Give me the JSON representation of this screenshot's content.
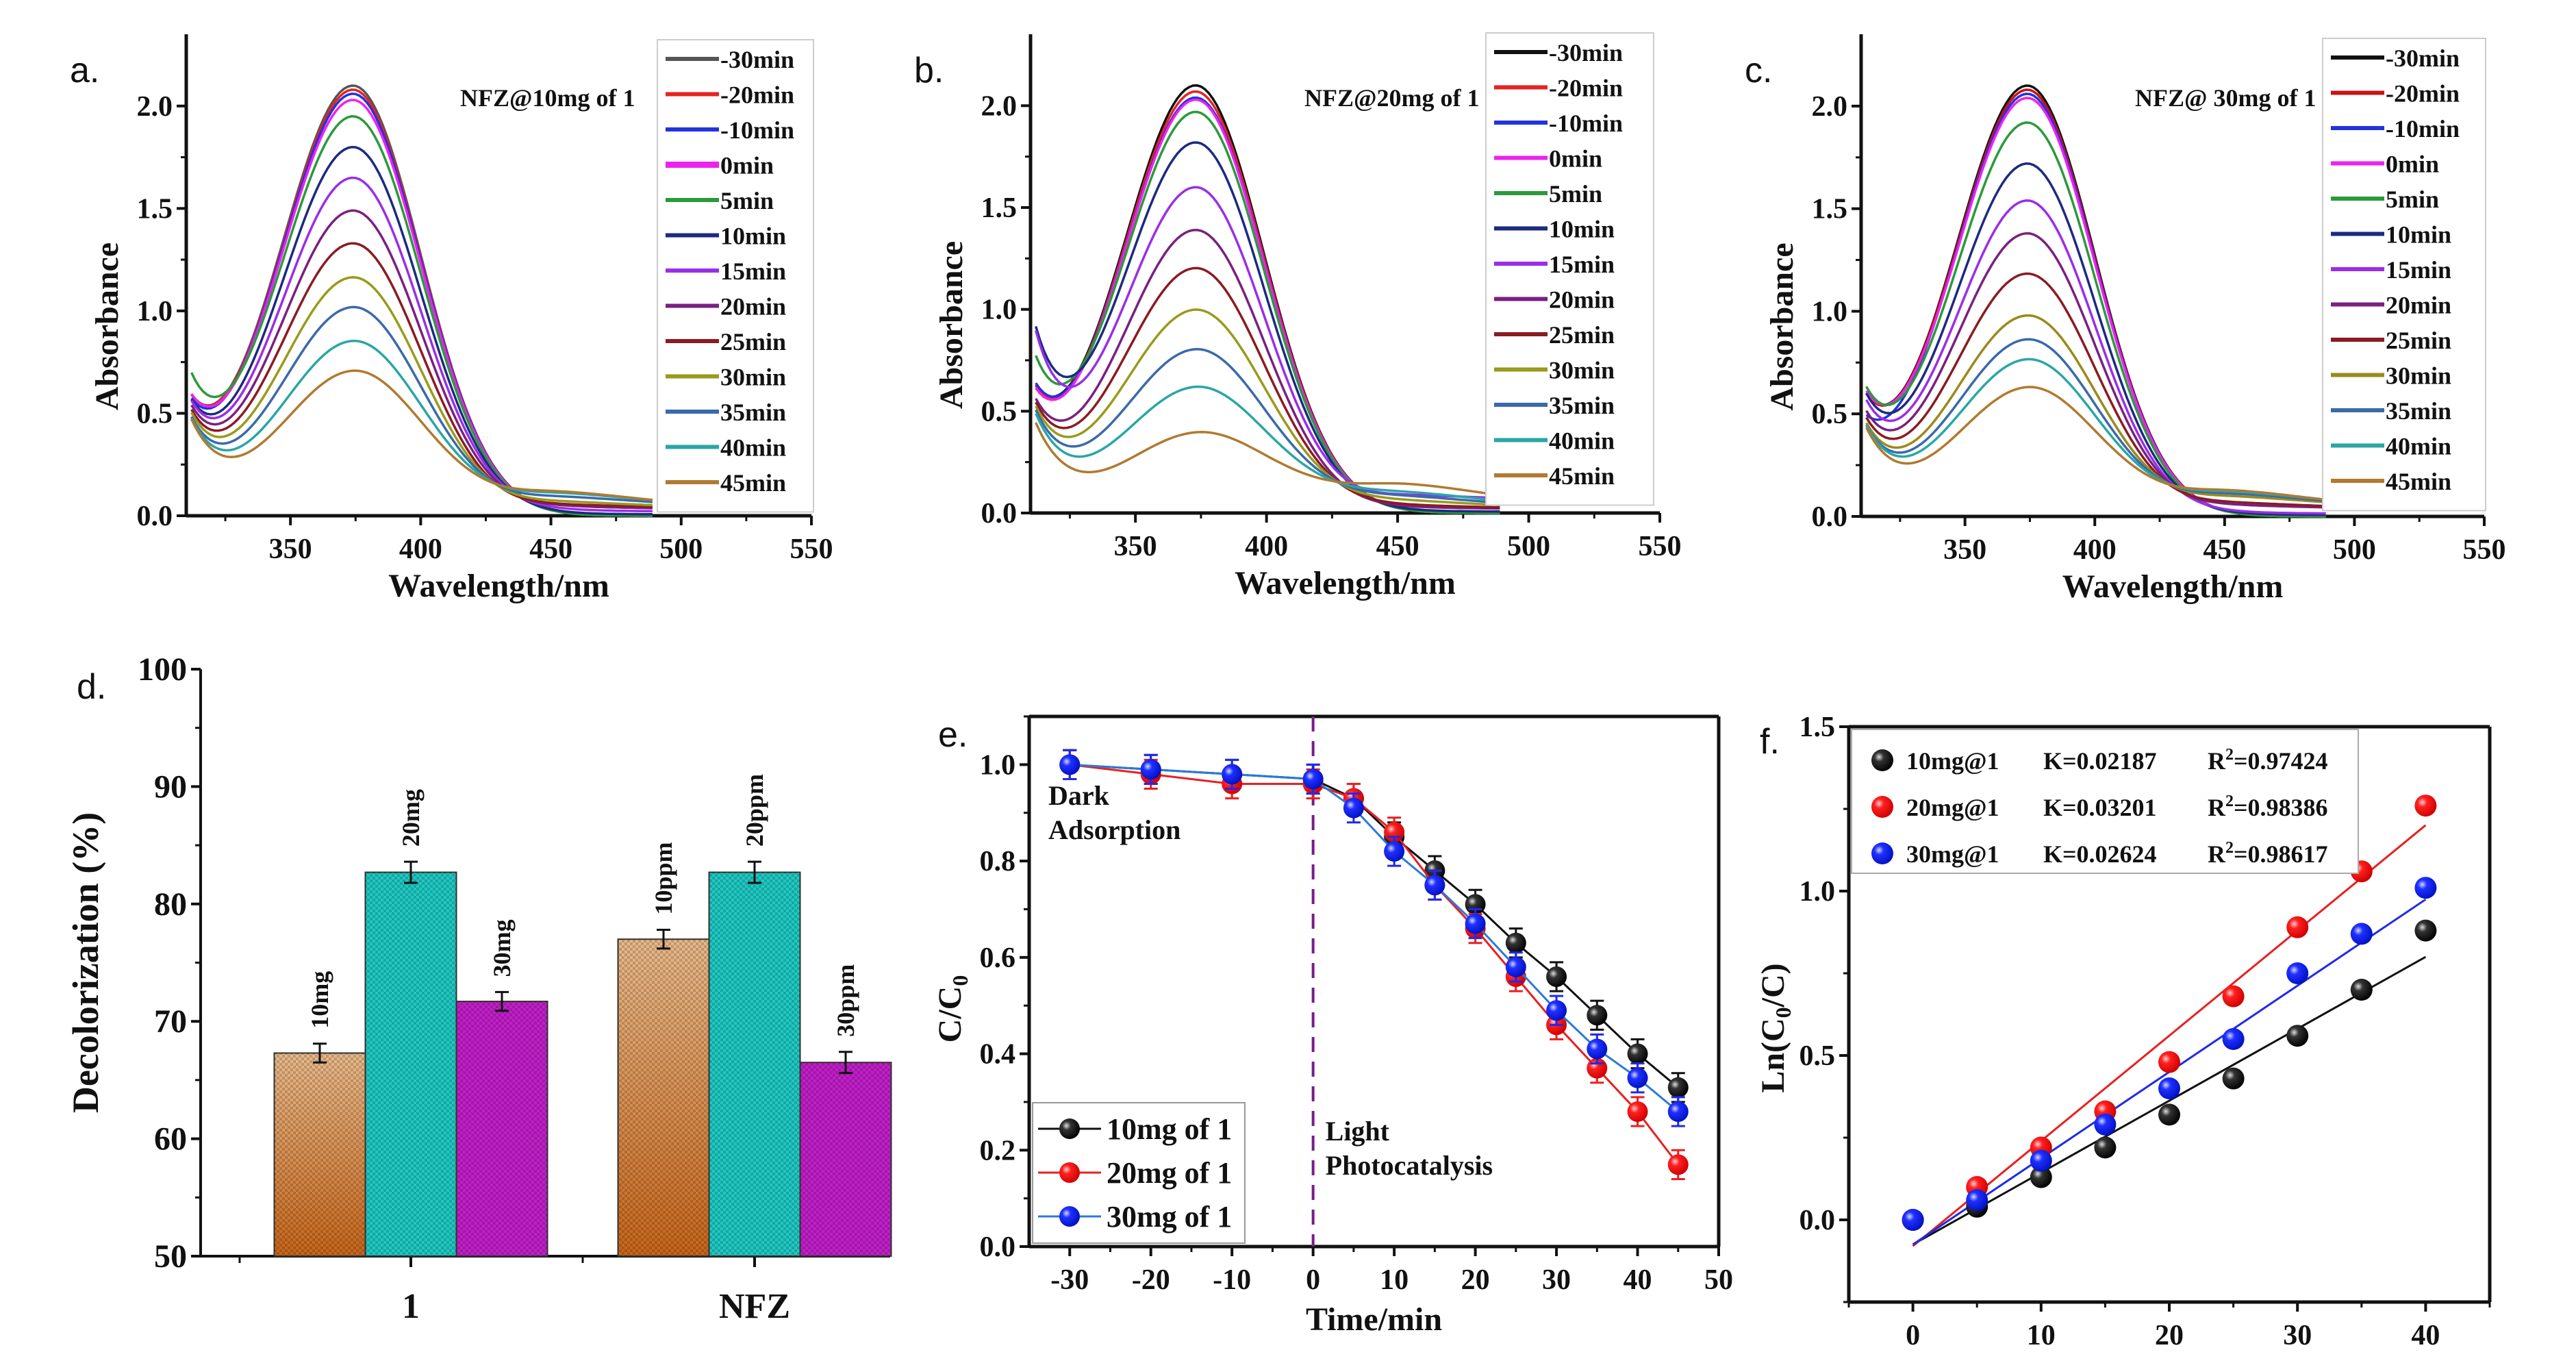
{
  "figure": {
    "panels": [
      "a.",
      "b.",
      "c.",
      "d.",
      "e.",
      "f."
    ]
  },
  "chart_data": [
    {
      "id": "a",
      "type": "line",
      "panel_label": "a.",
      "annotation": "NFZ@10mg of 1",
      "xlabel": "Wavelength/nm",
      "ylabel": "Absorbance",
      "xlim": [
        310,
        550
      ],
      "ylim": [
        0,
        2.25
      ],
      "xticks": [
        350,
        400,
        450,
        500,
        550
      ],
      "yticks": [
        0.0,
        0.5,
        1.0,
        1.5,
        2.0
      ],
      "ytick_labels": [
        "0.0",
        "0.5",
        "1.0",
        "1.5",
        "2.0"
      ],
      "legend_position": "right",
      "peak_nm": 374,
      "series": [
        {
          "name": "-30min",
          "color": "#555555",
          "peak": 2.1,
          "start": 0.52,
          "tail": 0.0
        },
        {
          "name": "-20min",
          "color": "#e8221f",
          "peak": 2.08,
          "start": 0.52,
          "tail": 0.0
        },
        {
          "name": "-10min",
          "color": "#2233dd",
          "peak": 2.06,
          "start": 0.5,
          "tail": 0.0
        },
        {
          "name": "0min",
          "color": "#ee22ee",
          "peak": 2.03,
          "start": 0.53,
          "tail": 0.0
        },
        {
          "name": "5min",
          "color": "#2a9a3a",
          "peak": 1.95,
          "start": 0.67,
          "tail": 0.0
        },
        {
          "name": "10min",
          "color": "#1c2a80",
          "peak": 1.8,
          "start": 0.52,
          "tail": 0.01
        },
        {
          "name": "15min",
          "color": "#9a2ee8",
          "peak": 1.65,
          "start": 0.53,
          "tail": 0.03
        },
        {
          "name": "20min",
          "color": "#7a2080",
          "peak": 1.49,
          "start": 0.52,
          "tail": 0.05
        },
        {
          "name": "25min",
          "color": "#8a1c22",
          "peak": 1.33,
          "start": 0.51,
          "tail": 0.06
        },
        {
          "name": "30min",
          "color": "#9a9a1c",
          "peak": 1.16,
          "start": 0.51,
          "tail": 0.06
        },
        {
          "name": "35min",
          "color": "#3a6aaa",
          "peak": 1.01,
          "start": 0.5,
          "tail": 0.07
        },
        {
          "name": "40min",
          "color": "#2aa6a6",
          "peak": 0.84,
          "start": 0.51,
          "tail": 0.07
        },
        {
          "name": "45min",
          "color": "#b07a30",
          "peak": 0.69,
          "start": 0.52,
          "tail": 0.06
        }
      ]
    },
    {
      "id": "b",
      "type": "line",
      "panel_label": "b.",
      "annotation": "NFZ@20mg of 1",
      "xlabel": "Wavelength/nm",
      "ylabel": "Absorbance",
      "xlim": [
        310,
        550
      ],
      "ylim": [
        0,
        2.25
      ],
      "xticks": [
        350,
        400,
        450,
        500,
        550
      ],
      "yticks": [
        0.0,
        0.5,
        1.0,
        1.5,
        2.0
      ],
      "ytick_labels": [
        "0.0",
        "0.5",
        "1.0",
        "1.5",
        "2.0"
      ],
      "legend_position": "right",
      "peak_nm": 373,
      "series": [
        {
          "name": "-30min",
          "color": "#111111",
          "peak": 2.1,
          "start": 0.55,
          "tail": 0.0
        },
        {
          "name": "-20min",
          "color": "#e8221f",
          "peak": 2.07,
          "start": 0.55,
          "tail": 0.0
        },
        {
          "name": "-10min",
          "color": "#2233dd",
          "peak": 2.04,
          "start": 0.57,
          "tail": 0.0
        },
        {
          "name": "0min",
          "color": "#ee22ee",
          "peak": 2.03,
          "start": 0.54,
          "tail": 0.0
        },
        {
          "name": "5min",
          "color": "#2a9a3a",
          "peak": 1.97,
          "start": 0.75,
          "tail": 0.0
        },
        {
          "name": "10min",
          "color": "#1c2a80",
          "peak": 1.82,
          "start": 0.95,
          "tail": 0.01
        },
        {
          "name": "15min",
          "color": "#9a2ee8",
          "peak": 1.6,
          "start": 0.95,
          "tail": 0.1
        },
        {
          "name": "20min",
          "color": "#7a2080",
          "peak": 1.39,
          "start": 0.55,
          "tail": 0.03
        },
        {
          "name": "25min",
          "color": "#8a1c22",
          "peak": 1.2,
          "start": 0.55,
          "tail": 0.03
        },
        {
          "name": "30min",
          "color": "#9a9a1c",
          "peak": 0.99,
          "start": 0.55,
          "tail": 0.03
        },
        {
          "name": "35min",
          "color": "#3a6aaa",
          "peak": 0.79,
          "start": 0.55,
          "tail": 0.03
        },
        {
          "name": "40min",
          "color": "#2aa6a6",
          "peak": 0.6,
          "start": 0.55,
          "tail": 0.03
        },
        {
          "name": "45min",
          "color": "#b07a30",
          "peak": 0.37,
          "start": 0.52,
          "tail": 0.05
        }
      ]
    },
    {
      "id": "c",
      "type": "line",
      "panel_label": "c.",
      "annotation": "NFZ@ 30mg of 1",
      "xlabel": "Wavelength/nm",
      "ylabel": "Absorbance",
      "xlim": [
        310,
        550
      ],
      "ylim": [
        0,
        2.25
      ],
      "xticks": [
        350,
        400,
        450,
        500,
        550
      ],
      "yticks": [
        0.0,
        0.5,
        1.0,
        1.5,
        2.0
      ],
      "ytick_labels": [
        "0.0",
        "0.5",
        "1.0",
        "1.5",
        "2.0"
      ],
      "legend_position": "right",
      "peak_nm": 374,
      "series": [
        {
          "name": "-30min",
          "color": "#111111",
          "peak": 2.1,
          "start": 0.53,
          "tail": 0.0
        },
        {
          "name": "-20min",
          "color": "#cc1111",
          "peak": 2.08,
          "start": 0.53,
          "tail": 0.0
        },
        {
          "name": "-10min",
          "color": "#2233dd",
          "peak": 2.06,
          "start": 0.4,
          "tail": 0.0
        },
        {
          "name": "0min",
          "color": "#ee22ee",
          "peak": 2.04,
          "start": 0.55,
          "tail": 0.0
        },
        {
          "name": "5min",
          "color": "#2a9a3a",
          "peak": 1.92,
          "start": 0.59,
          "tail": 0.0
        },
        {
          "name": "10min",
          "color": "#1c2a80",
          "peak": 1.72,
          "start": 0.57,
          "tail": 0.01
        },
        {
          "name": "15min",
          "color": "#9a2ee8",
          "peak": 1.54,
          "start": 0.55,
          "tail": 0.02
        },
        {
          "name": "20min",
          "color": "#7a2080",
          "peak": 1.38,
          "start": 0.5,
          "tail": 0.06
        },
        {
          "name": "25min",
          "color": "#8a1c22",
          "peak": 1.18,
          "start": 0.48,
          "tail": 0.06
        },
        {
          "name": "30min",
          "color": "#9a8a1c",
          "peak": 0.97,
          "start": 0.47,
          "tail": 0.07
        },
        {
          "name": "35min",
          "color": "#3a6aaa",
          "peak": 0.85,
          "start": 0.47,
          "tail": 0.07
        },
        {
          "name": "40min",
          "color": "#2aa6a6",
          "peak": 0.75,
          "start": 0.48,
          "tail": 0.07
        },
        {
          "name": "45min",
          "color": "#b07a30",
          "peak": 0.61,
          "start": 0.48,
          "tail": 0.06
        }
      ]
    },
    {
      "id": "d",
      "type": "bar",
      "panel_label": "d.",
      "xlabel": "",
      "ylabel": "Decolorization (%)",
      "ylim": [
        50,
        100
      ],
      "yticks": [
        50,
        60,
        70,
        80,
        90,
        100
      ],
      "categories": [
        "1",
        "NFZ"
      ],
      "bar_colors": [
        "#c9884a",
        "#1fc9c3",
        "#c21fc9"
      ],
      "groups": [
        {
          "category": "1",
          "bars": [
            {
              "label": "10mg",
              "value": 67.3,
              "error": 0.8
            },
            {
              "label": "20mg",
              "value": 82.7,
              "error": 0.9
            },
            {
              "label": "30mg",
              "value": 71.7,
              "error": 0.8
            }
          ]
        },
        {
          "category": "NFZ",
          "bars": [
            {
              "label": "10ppm",
              "value": 77.0,
              "error": 0.8
            },
            {
              "label": "20ppm",
              "value": 82.7,
              "error": 0.9
            },
            {
              "label": "30ppm",
              "value": 66.5,
              "error": 0.9
            }
          ]
        }
      ]
    },
    {
      "id": "e",
      "type": "line",
      "panel_label": "e.",
      "xlabel": "Time/min",
      "ylabel": "C/C0",
      "xlim": [
        -35,
        50
      ],
      "ylim": [
        0,
        1.1
      ],
      "xticks": [
        -30,
        -20,
        -10,
        0,
        10,
        20,
        30,
        40,
        50
      ],
      "yticks": [
        0.0,
        0.2,
        0.4,
        0.6,
        0.8,
        1.0
      ],
      "ytick_labels": [
        "0.0",
        "0.2",
        "0.4",
        "0.6",
        "0.8",
        "1.0"
      ],
      "annotations": {
        "dark_line1": "Dark",
        "dark_line2": "Adsorption",
        "light_line1": "Light",
        "light_line2": "Photocatalysis"
      },
      "divider_x": 0,
      "divider_color": "#7a1c8a",
      "legend_position": "bottom-left",
      "x": [
        -30,
        -20,
        -10,
        0,
        5,
        10,
        15,
        20,
        25,
        30,
        35,
        40,
        45
      ],
      "series": [
        {
          "name": "10mg of 1",
          "color": "#111111",
          "values": [
            1.0,
            0.99,
            0.98,
            0.97,
            0.93,
            0.85,
            0.78,
            0.71,
            0.63,
            0.56,
            0.48,
            0.4,
            0.33
          ],
          "error": 0.03
        },
        {
          "name": "20mg of 1",
          "color": "#e82020",
          "values": [
            1.0,
            0.98,
            0.96,
            0.96,
            0.93,
            0.86,
            0.75,
            0.66,
            0.56,
            0.46,
            0.37,
            0.28,
            0.17
          ],
          "error": 0.03
        },
        {
          "name": "30mg of 1",
          "color": "#1f2ae8",
          "values": [
            1.0,
            0.99,
            0.98,
            0.97,
            0.91,
            0.82,
            0.75,
            0.67,
            0.58,
            0.49,
            0.41,
            0.35,
            0.28
          ],
          "error": 0.03
        }
      ]
    },
    {
      "id": "f",
      "type": "scatter",
      "panel_label": "f.",
      "xlabel": "Time/min",
      "ylabel": "Ln(C0/C)",
      "xlim": [
        -5,
        45
      ],
      "ylim": [
        -0.25,
        1.5
      ],
      "xticks": [
        0,
        10,
        20,
        30,
        40
      ],
      "yticks": [
        0.0,
        0.5,
        1.0,
        1.5
      ],
      "ytick_labels": [
        "0.0",
        "0.5",
        "1.0",
        "1.5"
      ],
      "legend_position": "top-left",
      "x": [
        0,
        5,
        10,
        15,
        20,
        25,
        30,
        35,
        40
      ],
      "series": [
        {
          "name": "10mg@1",
          "k_label": "K=0.02187",
          "r2_label": "=0.97424",
          "color": "#111111",
          "values": [
            0.0,
            0.04,
            0.13,
            0.22,
            0.32,
            0.43,
            0.56,
            0.7,
            0.88
          ],
          "fit": {
            "slope": 0.02187,
            "intercept": -0.075
          }
        },
        {
          "name": "20mg@1",
          "k_label": "K=0.03201",
          "r2_label": "=0.98386",
          "color": "#e82020",
          "values": [
            0.0,
            0.1,
            0.22,
            0.33,
            0.48,
            0.68,
            0.89,
            1.06,
            1.26
          ],
          "fit": {
            "slope": 0.03201,
            "intercept": -0.08
          }
        },
        {
          "name": "30mg@1",
          "k_label": "K=0.02624",
          "r2_label": "=0.98617",
          "color": "#1f2ae8",
          "values": [
            0.0,
            0.06,
            0.18,
            0.29,
            0.4,
            0.55,
            0.75,
            0.87,
            1.01
          ],
          "fit": {
            "slope": 0.02624,
            "intercept": -0.075
          }
        }
      ]
    }
  ]
}
